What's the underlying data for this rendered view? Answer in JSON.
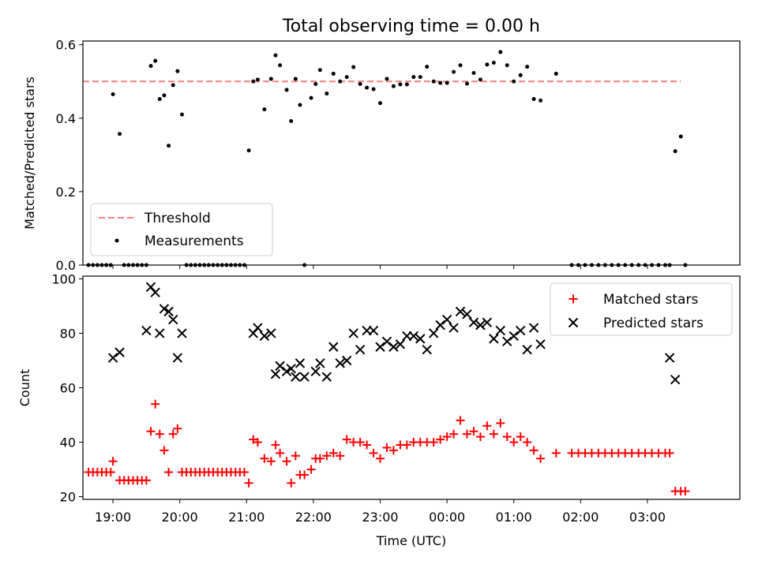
{
  "chart_data": [
    {
      "type": "scatter",
      "title": "Total observing time = 0.00 h",
      "xlabel": "",
      "ylabel": "Matched/Predicted stars",
      "xlim": [
        "18:33",
        "04:23"
      ],
      "ylim": [
        0,
        0.61
      ],
      "yticks": [
        "0.0",
        "0.2",
        "0.4",
        "0.6"
      ],
      "legend": {
        "position": "lower-left",
        "threshold_label": "Threshold",
        "measurements_label": "Measurements"
      },
      "threshold": {
        "value": 0.5,
        "x_start": "18:33",
        "x_end": "03:30",
        "color": "#ff7f7f"
      },
      "series": [
        {
          "name": "Measurements",
          "color": "#000000",
          "marker": "dot",
          "x": [
            "18:38",
            "18:42",
            "18:46",
            "18:50",
            "18:54",
            "18:58",
            "19:00",
            "19:06",
            "19:10",
            "19:14",
            "19:18",
            "19:22",
            "19:26",
            "19:30",
            "19:34",
            "19:38",
            "19:42",
            "19:46",
            "19:50",
            "19:54",
            "19:58",
            "20:02",
            "20:06",
            "20:10",
            "20:14",
            "20:18",
            "20:22",
            "20:26",
            "20:30",
            "20:34",
            "20:38",
            "20:42",
            "20:46",
            "20:50",
            "20:54",
            "20:58",
            "21:02",
            "21:06",
            "21:10",
            "21:16",
            "21:22",
            "21:26",
            "21:30",
            "21:36",
            "21:40",
            "21:44",
            "21:48",
            "21:52",
            "21:58",
            "22:02",
            "22:06",
            "22:12",
            "22:18",
            "22:24",
            "22:30",
            "22:36",
            "22:42",
            "22:48",
            "22:54",
            "23:00",
            "23:06",
            "23:12",
            "23:18",
            "23:24",
            "23:30",
            "23:36",
            "23:42",
            "23:48",
            "23:54",
            "00:00",
            "00:06",
            "00:12",
            "00:18",
            "00:24",
            "00:30",
            "00:36",
            "00:42",
            "00:48",
            "00:54",
            "01:00",
            "01:06",
            "01:12",
            "01:18",
            "01:24",
            "01:38",
            "01:52",
            "01:58",
            "02:04",
            "02:10",
            "02:16",
            "02:22",
            "02:28",
            "02:34",
            "02:40",
            "02:46",
            "02:52",
            "02:58",
            "03:04",
            "03:10",
            "03:16",
            "03:20",
            "03:25",
            "03:30",
            "03:34"
          ],
          "y": [
            0.0,
            0.0,
            0.0,
            0.0,
            0.0,
            0.0,
            0.465,
            0.357,
            0.0,
            0.0,
            0.0,
            0.0,
            0.0,
            0.0,
            0.542,
            0.556,
            0.452,
            0.462,
            0.325,
            0.49,
            0.528,
            0.41,
            0.0,
            0.0,
            0.0,
            0.0,
            0.0,
            0.0,
            0.0,
            0.0,
            0.0,
            0.0,
            0.0,
            0.0,
            0.0,
            0.0,
            0.312,
            0.5,
            0.505,
            0.424,
            0.507,
            0.571,
            0.544,
            0.477,
            0.392,
            0.507,
            0.436,
            0.0,
            0.455,
            0.493,
            0.531,
            0.467,
            0.521,
            0.5,
            0.512,
            0.539,
            0.493,
            0.483,
            0.479,
            0.441,
            0.507,
            0.487,
            0.492,
            0.492,
            0.512,
            0.512,
            0.54,
            0.5,
            0.496,
            0.496,
            0.526,
            0.544,
            0.494,
            0.523,
            0.505,
            0.546,
            0.551,
            0.58,
            0.544,
            0.5,
            0.517,
            0.54,
            0.452,
            0.448,
            0.521,
            0.0,
            0.0,
            0.0,
            0.0,
            0.0,
            0.0,
            0.0,
            0.0,
            0.0,
            0.0,
            0.0,
            0.0,
            0.0,
            0.0,
            0.0,
            0.0,
            0.31,
            0.35,
            0.0
          ]
        }
      ]
    },
    {
      "type": "scatter",
      "title": "",
      "xlabel": "Time (UTC)",
      "ylabel": "Count",
      "xlim": [
        "18:33",
        "04:23"
      ],
      "ylim": [
        19,
        101
      ],
      "xticks": [
        "19:00",
        "20:00",
        "21:00",
        "22:00",
        "23:00",
        "00:00",
        "01:00",
        "02:00",
        "03:00"
      ],
      "yticks": [
        "20",
        "40",
        "60",
        "80",
        "100"
      ],
      "legend": {
        "position": "top-right"
      },
      "series": [
        {
          "name": "Matched stars",
          "color": "#ff0000",
          "marker": "plus",
          "x": [
            "18:38",
            "18:42",
            "18:46",
            "18:50",
            "18:54",
            "18:58",
            "19:00",
            "19:06",
            "19:10",
            "19:14",
            "19:18",
            "19:22",
            "19:26",
            "19:30",
            "19:34",
            "19:38",
            "19:42",
            "19:46",
            "19:50",
            "19:54",
            "19:58",
            "20:02",
            "20:06",
            "20:10",
            "20:14",
            "20:18",
            "20:22",
            "20:26",
            "20:30",
            "20:34",
            "20:38",
            "20:42",
            "20:46",
            "20:50",
            "20:54",
            "20:58",
            "21:02",
            "21:06",
            "21:10",
            "21:16",
            "21:22",
            "21:26",
            "21:30",
            "21:36",
            "21:40",
            "21:44",
            "21:48",
            "21:52",
            "21:58",
            "22:02",
            "22:06",
            "22:12",
            "22:18",
            "22:24",
            "22:30",
            "22:36",
            "22:42",
            "22:48",
            "22:54",
            "23:00",
            "23:06",
            "23:12",
            "23:18",
            "23:24",
            "23:30",
            "23:36",
            "23:42",
            "23:48",
            "23:54",
            "00:00",
            "00:06",
            "00:12",
            "00:18",
            "00:24",
            "00:30",
            "00:36",
            "00:42",
            "00:48",
            "00:54",
            "01:00",
            "01:06",
            "01:12",
            "01:18",
            "01:24",
            "01:38",
            "01:52",
            "01:58",
            "02:04",
            "02:10",
            "02:16",
            "02:22",
            "02:28",
            "02:34",
            "02:40",
            "02:46",
            "02:52",
            "02:58",
            "03:04",
            "03:10",
            "03:16",
            "03:20",
            "03:25",
            "03:30",
            "03:34"
          ],
          "y": [
            29,
            29,
            29,
            29,
            29,
            29,
            33,
            26,
            26,
            26,
            26,
            26,
            26,
            26,
            44,
            54,
            43,
            37,
            29,
            43,
            45,
            29,
            29,
            29,
            29,
            29,
            29,
            29,
            29,
            29,
            29,
            29,
            29,
            29,
            29,
            29,
            25,
            41,
            40,
            34,
            33,
            39,
            36,
            33,
            25,
            35,
            28,
            28,
            30,
            34,
            34,
            35,
            36,
            35,
            41,
            40,
            40,
            39,
            36,
            34,
            38,
            37,
            39,
            39,
            40,
            40,
            40,
            40,
            41,
            42,
            43,
            48,
            43,
            44,
            42,
            46,
            43,
            47,
            42,
            40,
            42,
            40,
            37,
            34,
            36,
            36,
            36,
            36,
            36,
            36,
            36,
            36,
            36,
            36,
            36,
            36,
            36,
            36,
            36,
            36,
            36,
            22,
            22,
            22
          ]
        },
        {
          "name": "Predicted stars",
          "color": "#000000",
          "marker": "x",
          "x": [
            "19:00",
            "19:06",
            "19:30",
            "19:34",
            "19:38",
            "19:42",
            "19:46",
            "19:50",
            "19:54",
            "19:58",
            "20:02",
            "21:06",
            "21:10",
            "21:16",
            "21:22",
            "21:26",
            "21:30",
            "21:36",
            "21:40",
            "21:44",
            "21:48",
            "21:52",
            "22:02",
            "22:06",
            "22:12",
            "22:18",
            "22:24",
            "22:30",
            "22:36",
            "22:42",
            "22:48",
            "22:54",
            "23:00",
            "23:06",
            "23:12",
            "23:18",
            "23:24",
            "23:30",
            "23:36",
            "23:42",
            "23:48",
            "23:54",
            "00:00",
            "00:06",
            "00:12",
            "00:18",
            "00:24",
            "00:30",
            "00:36",
            "00:42",
            "00:48",
            "00:54",
            "01:00",
            "01:06",
            "01:12",
            "01:18",
            "01:24",
            "03:20",
            "03:25"
          ],
          "y": [
            71,
            73,
            81,
            97,
            95,
            80,
            89,
            88,
            85,
            71,
            80,
            80,
            82,
            79,
            80,
            65,
            68,
            66,
            67,
            64,
            69,
            64,
            66,
            69,
            64,
            75,
            69,
            70,
            80,
            74,
            81,
            81,
            75,
            77,
            75,
            76,
            79,
            79,
            78,
            74,
            80,
            83,
            85,
            82,
            88,
            87,
            84,
            83,
            84,
            78,
            81,
            77,
            79,
            81,
            74,
            82,
            76,
            71,
            63
          ]
        }
      ]
    }
  ]
}
